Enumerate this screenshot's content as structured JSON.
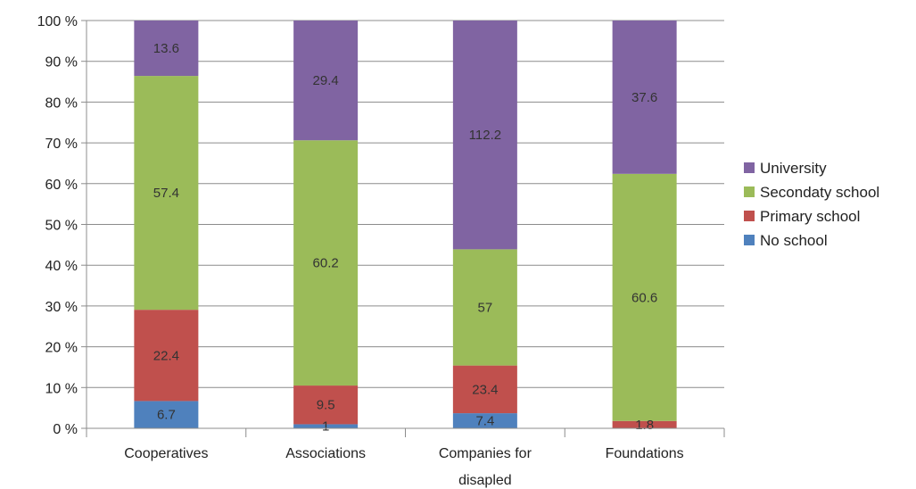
{
  "chart_data": {
    "type": "bar",
    "stacked": true,
    "normalized": true,
    "categories": [
      "Cooperatives",
      "Associations",
      "Companies for disapled",
      "Foundations"
    ],
    "series": [
      {
        "name": "No school",
        "color": "#4f81bd",
        "values": [
          6.7,
          1,
          7.4,
          0
        ]
      },
      {
        "name": "Primary school",
        "color": "#c0504d",
        "values": [
          22.4,
          9.5,
          23.4,
          1.8
        ]
      },
      {
        "name": "Secondaty school",
        "color": "#9bbb59",
        "values": [
          57.4,
          60.2,
          57,
          60.6
        ]
      },
      {
        "name": "University",
        "color": "#8064a2",
        "values": [
          13.6,
          29.4,
          112.2,
          37.6
        ]
      }
    ],
    "data_labels": [
      [
        "6.7",
        "1",
        "7.4",
        ""
      ],
      [
        "22.4",
        "9.5",
        "23.4",
        "1.8"
      ],
      [
        "57.4",
        "60.2",
        "57",
        "60.6"
      ],
      [
        "13.6",
        "29.4",
        "112.2",
        "37.6"
      ]
    ],
    "y_ticks": [
      "0 %",
      "10 %",
      "20 %",
      "30 %",
      "40 %",
      "50 %",
      "60 %",
      "70 %",
      "80 %",
      "90 %",
      "100 %"
    ],
    "ylim": [
      0,
      100
    ],
    "grid": true,
    "legend_position": "right"
  }
}
